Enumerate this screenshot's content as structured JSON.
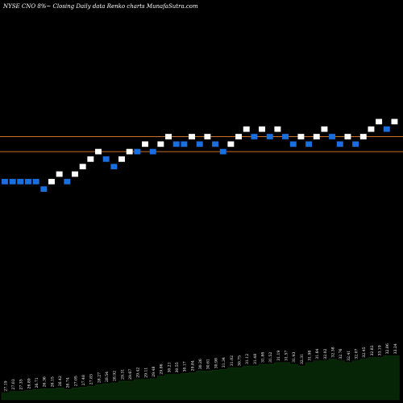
{
  "header": {
    "title": "NYSE CNO 8%~  Closing Daily data  Renko  charts MunafaSutra.com"
  },
  "colors": {
    "background": "#000000",
    "up_brick": "#ffffff",
    "down_brick": "#1a6fe0",
    "level_line": "#c8702a",
    "volume": "#062406"
  },
  "chart_data": {
    "type": "renko",
    "y_range": [
      0,
      100
    ],
    "reference_levels": [
      70,
      66
    ],
    "bricks": [
      {
        "dir": "down",
        "level": 58
      },
      {
        "dir": "down",
        "level": 58
      },
      {
        "dir": "down",
        "level": 58
      },
      {
        "dir": "down",
        "level": 58
      },
      {
        "dir": "down",
        "level": 58
      },
      {
        "dir": "down",
        "level": 56
      },
      {
        "dir": "up",
        "level": 58
      },
      {
        "dir": "up",
        "level": 60
      },
      {
        "dir": "down",
        "level": 58
      },
      {
        "dir": "up",
        "level": 60
      },
      {
        "dir": "up",
        "level": 62
      },
      {
        "dir": "up",
        "level": 64
      },
      {
        "dir": "up",
        "level": 66
      },
      {
        "dir": "down",
        "level": 64
      },
      {
        "dir": "down",
        "level": 62
      },
      {
        "dir": "up",
        "level": 64
      },
      {
        "dir": "up",
        "level": 66
      },
      {
        "dir": "down",
        "level": 66
      },
      {
        "dir": "up",
        "level": 68
      },
      {
        "dir": "down",
        "level": 66
      },
      {
        "dir": "up",
        "level": 68
      },
      {
        "dir": "up",
        "level": 70
      },
      {
        "dir": "down",
        "level": 68
      },
      {
        "dir": "down",
        "level": 68
      },
      {
        "dir": "up",
        "level": 70
      },
      {
        "dir": "down",
        "level": 68
      },
      {
        "dir": "up",
        "level": 70
      },
      {
        "dir": "down",
        "level": 68
      },
      {
        "dir": "down",
        "level": 66
      },
      {
        "dir": "up",
        "level": 68
      },
      {
        "dir": "up",
        "level": 70
      },
      {
        "dir": "up",
        "level": 72
      },
      {
        "dir": "down",
        "level": 70
      },
      {
        "dir": "up",
        "level": 72
      },
      {
        "dir": "down",
        "level": 70
      },
      {
        "dir": "up",
        "level": 72
      },
      {
        "dir": "down",
        "level": 70
      },
      {
        "dir": "down",
        "level": 68
      },
      {
        "dir": "up",
        "level": 70
      },
      {
        "dir": "down",
        "level": 68
      },
      {
        "dir": "up",
        "level": 70
      },
      {
        "dir": "up",
        "level": 72
      },
      {
        "dir": "down",
        "level": 70
      },
      {
        "dir": "down",
        "level": 68
      },
      {
        "dir": "up",
        "level": 70
      },
      {
        "dir": "down",
        "level": 68
      },
      {
        "dir": "up",
        "level": 70
      },
      {
        "dir": "up",
        "level": 72
      },
      {
        "dir": "up",
        "level": 74
      },
      {
        "dir": "down",
        "level": 72
      },
      {
        "dir": "up",
        "level": 74
      }
    ],
    "volume": [
      8,
      10,
      10,
      11,
      12,
      13,
      13,
      14,
      12,
      14,
      15,
      16,
      18,
      19,
      20,
      22,
      22,
      24,
      24,
      25,
      28,
      30,
      30,
      31,
      32,
      34,
      34,
      35,
      36,
      38,
      38,
      40,
      40,
      42,
      42,
      44,
      44,
      42,
      40,
      44,
      46,
      46,
      48,
      46,
      44,
      46,
      48,
      50,
      50,
      52,
      52
    ],
    "volume_labels": [
      "27.19",
      "27.03",
      "27.35",
      "26.89",
      "26.71",
      "26.36",
      "26.15",
      "26.42",
      "26.74",
      "27.05",
      "27.48",
      "27.83",
      "28.27",
      "28.54",
      "28.92",
      "29.31",
      "29.67",
      "29.42",
      "29.11",
      "29.48",
      "29.86",
      "30.21",
      "30.55",
      "30.17",
      "29.84",
      "30.26",
      "30.61",
      "30.98",
      "31.34",
      "31.02",
      "30.75",
      "31.12",
      "31.48",
      "31.86",
      "31.52",
      "31.19",
      "31.57",
      "31.93",
      "32.31",
      "31.98",
      "31.64",
      "32.02",
      "32.38",
      "32.76",
      "32.41",
      "32.07",
      "32.45",
      "32.82",
      "33.19",
      "32.86",
      "33.24"
    ]
  }
}
